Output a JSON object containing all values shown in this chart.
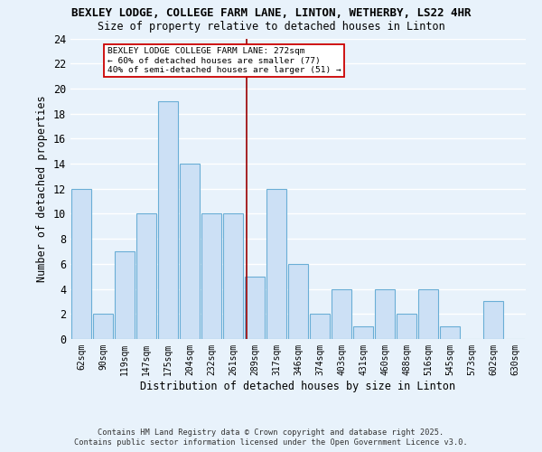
{
  "title1": "BEXLEY LODGE, COLLEGE FARM LANE, LINTON, WETHERBY, LS22 4HR",
  "title2": "Size of property relative to detached houses in Linton",
  "xlabel": "Distribution of detached houses by size in Linton",
  "ylabel": "Number of detached properties",
  "bin_labels": [
    "62sqm",
    "90sqm",
    "119sqm",
    "147sqm",
    "175sqm",
    "204sqm",
    "232sqm",
    "261sqm",
    "289sqm",
    "317sqm",
    "346sqm",
    "374sqm",
    "403sqm",
    "431sqm",
    "460sqm",
    "488sqm",
    "516sqm",
    "545sqm",
    "573sqm",
    "602sqm",
    "630sqm"
  ],
  "bar_heights": [
    12,
    2,
    7,
    10,
    19,
    14,
    10,
    10,
    5,
    12,
    6,
    2,
    4,
    1,
    4,
    2,
    4,
    1,
    0,
    3,
    0
  ],
  "bar_color": "#cce0f5",
  "bar_edge_color": "#6aaed6",
  "bg_color": "#e8f2fb",
  "grid_color": "#ffffff",
  "vline_x": 7.62,
  "vline_color": "#990000",
  "annotation_text": "BEXLEY LODGE COLLEGE FARM LANE: 272sqm\n← 60% of detached houses are smaller (77)\n40% of semi-detached houses are larger (51) →",
  "annotation_box_color": "#cc0000",
  "ylim": [
    0,
    24
  ],
  "yticks": [
    0,
    2,
    4,
    6,
    8,
    10,
    12,
    14,
    16,
    18,
    20,
    22,
    24
  ],
  "footnote1": "Contains HM Land Registry data © Crown copyright and database right 2025.",
  "footnote2": "Contains public sector information licensed under the Open Government Licence v3.0."
}
